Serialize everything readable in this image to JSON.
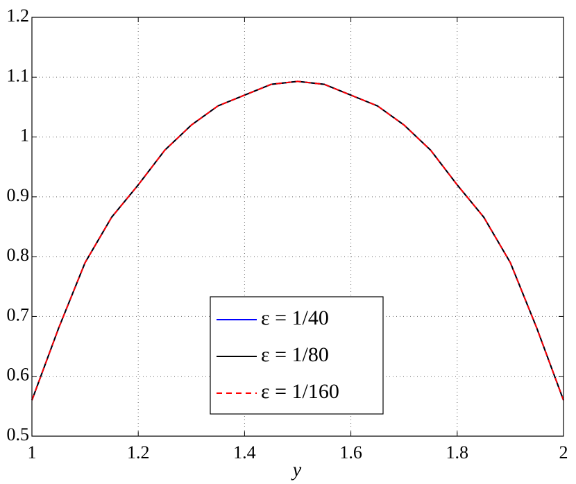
{
  "chart_data": {
    "type": "line",
    "x_label": "y",
    "x": [
      1.0,
      1.05,
      1.1,
      1.15,
      1.2,
      1.25,
      1.3,
      1.35,
      1.4,
      1.45,
      1.5,
      1.55,
      1.6,
      1.65,
      1.7,
      1.75,
      1.8,
      1.85,
      1.9,
      1.95,
      2.0
    ],
    "series": [
      {
        "name": "ε = 1/40",
        "color": "#0000ff",
        "values": [
          0.56,
          0.68,
          0.79,
          0.866,
          0.92,
          0.978,
          1.02,
          1.052,
          1.07,
          1.088,
          1.093,
          1.088,
          1.07,
          1.052,
          1.02,
          0.978,
          0.92,
          0.866,
          0.79,
          0.68,
          0.56
        ]
      },
      {
        "name": "ε = 1/80",
        "color": "#000000",
        "values": [
          0.56,
          0.68,
          0.79,
          0.866,
          0.92,
          0.978,
          1.02,
          1.052,
          1.07,
          1.088,
          1.093,
          1.088,
          1.07,
          1.052,
          1.02,
          0.978,
          0.92,
          0.866,
          0.79,
          0.68,
          0.56
        ]
      },
      {
        "name": "ε = 1/160",
        "color": "#ff0000",
        "values": [
          0.56,
          0.68,
          0.79,
          0.866,
          0.92,
          0.978,
          1.02,
          1.052,
          1.07,
          1.088,
          1.093,
          1.088,
          1.07,
          1.052,
          1.02,
          0.978,
          0.92,
          0.866,
          0.79,
          0.68,
          0.56
        ]
      }
    ],
    "xlim": [
      1,
      2
    ],
    "xticks": [
      1,
      1.2,
      1.4,
      1.6,
      1.8,
      2
    ],
    "ylim": [
      0.5,
      1.2
    ],
    "yticks": [
      0.5,
      0.6,
      0.7,
      0.8,
      0.9,
      1,
      1.1,
      1.2
    ],
    "grid": true
  }
}
